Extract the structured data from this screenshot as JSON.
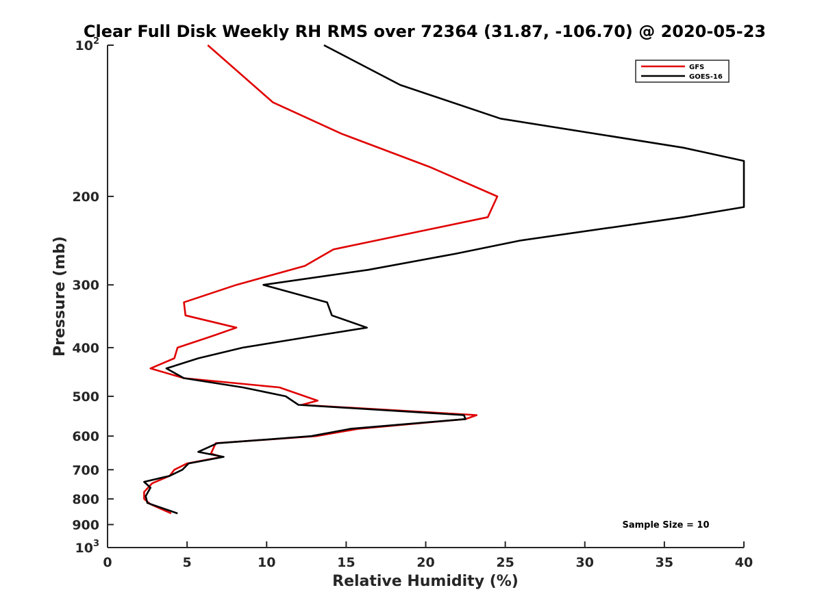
{
  "chart_data": {
    "type": "line",
    "title": "Clear Full Disk Weekly RH RMS over 72364 (31.87, -106.70) @ 2020-05-23",
    "xlabel": "Relative Humidity (%)",
    "ylabel": "Pressure (mb)",
    "xlim": [
      0,
      40
    ],
    "ylim": [
      100,
      1000
    ],
    "y_scale": "log",
    "y_reversed": true,
    "x_ticks": [
      "0",
      "5",
      "10",
      "15",
      "20",
      "25",
      "30",
      "35",
      "40"
    ],
    "y_ticks": [
      {
        "value": 100,
        "base": "10",
        "exp": "2"
      },
      {
        "value": 200,
        "label": "200"
      },
      {
        "value": 300,
        "label": "300"
      },
      {
        "value": 400,
        "label": "400"
      },
      {
        "value": 500,
        "label": "500"
      },
      {
        "value": 600,
        "label": "600"
      },
      {
        "value": 700,
        "label": "700"
      },
      {
        "value": 800,
        "label": "800"
      },
      {
        "value": 900,
        "label": "900"
      },
      {
        "value": 1000,
        "base": "10",
        "exp": "3"
      }
    ],
    "legend_position": "top-right",
    "grid": false,
    "annotation": "Sample Size = 10",
    "series": [
      {
        "name": "GFS",
        "color": "#e00000",
        "points": [
          [
            6.3,
            100
          ],
          [
            10.4,
            130
          ],
          [
            14.7,
            150
          ],
          [
            20.3,
            175
          ],
          [
            24.5,
            200
          ],
          [
            23.9,
            220
          ],
          [
            14.2,
            255
          ],
          [
            12.4,
            275
          ],
          [
            8.1,
            300
          ],
          [
            4.8,
            325
          ],
          [
            4.9,
            345
          ],
          [
            8.1,
            365
          ],
          [
            6.5,
            380
          ],
          [
            4.4,
            400
          ],
          [
            4.2,
            420
          ],
          [
            2.7,
            440
          ],
          [
            4.8,
            460
          ],
          [
            10.8,
            480
          ],
          [
            13.2,
            510
          ],
          [
            12.2,
            520
          ],
          [
            23.2,
            545
          ],
          [
            22.5,
            555
          ],
          [
            15.8,
            580
          ],
          [
            13.1,
            600
          ],
          [
            6.8,
            620
          ],
          [
            6.5,
            650
          ],
          [
            7.2,
            660
          ],
          [
            5.0,
            680
          ],
          [
            4.2,
            700
          ],
          [
            3.9,
            720
          ],
          [
            2.8,
            745
          ],
          [
            2.3,
            775
          ],
          [
            2.3,
            800
          ],
          [
            2.7,
            820
          ],
          [
            4.0,
            855
          ]
        ]
      },
      {
        "name": "GOES-16",
        "color": "#000000",
        "points": [
          [
            13.6,
            100
          ],
          [
            18.4,
            120
          ],
          [
            24.7,
            140
          ],
          [
            36.2,
            160
          ],
          [
            40.0,
            170
          ],
          [
            40.0,
            210
          ],
          [
            36.2,
            220
          ],
          [
            25.9,
            245
          ],
          [
            21.9,
            260
          ],
          [
            16.4,
            280
          ],
          [
            9.8,
            300
          ],
          [
            13.8,
            325
          ],
          [
            14.1,
            345
          ],
          [
            16.3,
            365
          ],
          [
            12.8,
            380
          ],
          [
            8.5,
            400
          ],
          [
            5.7,
            420
          ],
          [
            3.7,
            440
          ],
          [
            4.8,
            460
          ],
          [
            8.5,
            480
          ],
          [
            11.2,
            500
          ],
          [
            12.0,
            520
          ],
          [
            22.4,
            545
          ],
          [
            22.5,
            555
          ],
          [
            15.3,
            580
          ],
          [
            12.8,
            600
          ],
          [
            6.9,
            620
          ],
          [
            5.7,
            645
          ],
          [
            7.3,
            660
          ],
          [
            5.1,
            680
          ],
          [
            4.7,
            700
          ],
          [
            3.9,
            720
          ],
          [
            2.3,
            740
          ],
          [
            2.7,
            760
          ],
          [
            2.4,
            790
          ],
          [
            2.5,
            815
          ],
          [
            4.4,
            855
          ]
        ]
      }
    ]
  }
}
